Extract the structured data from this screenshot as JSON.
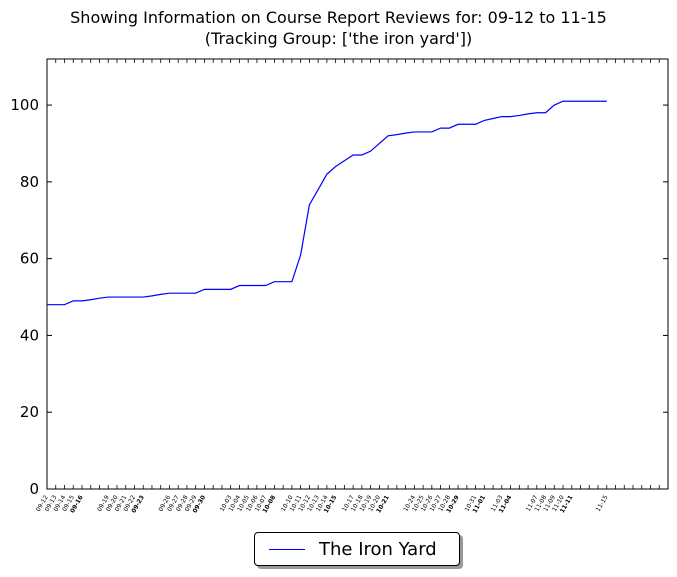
{
  "chart_data": {
    "type": "line",
    "title": "Showing Information on Course Report Reviews for: 09-12 to 11-15",
    "subtitle": "(Tracking Group: ['the iron yard'])",
    "xlabel": "",
    "ylabel": "",
    "ylim": [
      0,
      112
    ],
    "yticks": [
      0,
      20,
      40,
      60,
      80,
      100
    ],
    "x_start": "09-12",
    "x_end": "11-22",
    "x": [
      "09-12",
      "09-13",
      "09-14",
      "09-15",
      "09-16",
      "09-17",
      "09-18",
      "09-19",
      "09-20",
      "09-21",
      "09-22",
      "09-23",
      "09-24",
      "09-25",
      "09-26",
      "09-27",
      "09-28",
      "09-29",
      "09-30",
      "10-01",
      "10-02",
      "10-03",
      "10-04",
      "10-05",
      "10-06",
      "10-07",
      "10-08",
      "10-09",
      "10-10",
      "10-11",
      "10-12",
      "10-13",
      "10-14",
      "10-15",
      "10-16",
      "10-17",
      "10-18",
      "10-19",
      "10-20",
      "10-21",
      "10-22",
      "10-23",
      "10-24",
      "10-25",
      "10-26",
      "10-27",
      "10-28",
      "10-29",
      "10-30",
      "10-31",
      "11-01",
      "11-02",
      "11-03",
      "11-04",
      "11-05",
      "11-06",
      "11-07",
      "11-08",
      "11-09",
      "11-10",
      "11-11",
      "11-12",
      "11-13",
      "11-14",
      "11-15"
    ],
    "series": [
      {
        "name": "The Iron Yard",
        "color": "#0000ff",
        "values": [
          48,
          48,
          48,
          49,
          49,
          49.3,
          49.7,
          50,
          50,
          50,
          50,
          50,
          50.3,
          50.7,
          51,
          51,
          51,
          51,
          52,
          52,
          52,
          52,
          53,
          53,
          53,
          53,
          54,
          54,
          54,
          61,
          74,
          78,
          82,
          84,
          85.5,
          87,
          87,
          88,
          90,
          92,
          92.3,
          92.7,
          93,
          93,
          93,
          94,
          94,
          95,
          95,
          95,
          96,
          96.5,
          97,
          97,
          97.3,
          97.7,
          98,
          98,
          100,
          101,
          101,
          101,
          101,
          101,
          101
        ]
      }
    ],
    "xtick_labels": [
      {
        "label": "09-12",
        "bold": false
      },
      {
        "label": "09-13",
        "bold": false
      },
      {
        "label": "09-14",
        "bold": false
      },
      {
        "label": "09-15",
        "bold": false
      },
      {
        "label": "09-16",
        "bold": true
      },
      {
        "label": "09-19",
        "bold": false
      },
      {
        "label": "09-20",
        "bold": false
      },
      {
        "label": "09-21",
        "bold": false
      },
      {
        "label": "09-22",
        "bold": false
      },
      {
        "label": "09-23",
        "bold": true
      },
      {
        "label": "09-26",
        "bold": false
      },
      {
        "label": "09-27",
        "bold": false
      },
      {
        "label": "09-28",
        "bold": false
      },
      {
        "label": "09-29",
        "bold": false
      },
      {
        "label": "09-30",
        "bold": true
      },
      {
        "label": "10-03",
        "bold": false
      },
      {
        "label": "10-04",
        "bold": false
      },
      {
        "label": "10-05",
        "bold": false
      },
      {
        "label": "10-06",
        "bold": false
      },
      {
        "label": "10-07",
        "bold": false
      },
      {
        "label": "10-08",
        "bold": true
      },
      {
        "label": "10-10",
        "bold": false
      },
      {
        "label": "10-11",
        "bold": false
      },
      {
        "label": "10-12",
        "bold": false
      },
      {
        "label": "10-13",
        "bold": false
      },
      {
        "label": "10-14",
        "bold": false
      },
      {
        "label": "10-15",
        "bold": true
      },
      {
        "label": "10-17",
        "bold": false
      },
      {
        "label": "10-18",
        "bold": false
      },
      {
        "label": "10-19",
        "bold": false
      },
      {
        "label": "10-20",
        "bold": false
      },
      {
        "label": "10-21",
        "bold": true
      },
      {
        "label": "10-24",
        "bold": false
      },
      {
        "label": "10-25",
        "bold": false
      },
      {
        "label": "10-26",
        "bold": false
      },
      {
        "label": "10-27",
        "bold": false
      },
      {
        "label": "10-28",
        "bold": false
      },
      {
        "label": "10-29",
        "bold": true
      },
      {
        "label": "10-31",
        "bold": false
      },
      {
        "label": "11-01",
        "bold": true
      },
      {
        "label": "11-03",
        "bold": false
      },
      {
        "label": "11-04",
        "bold": true
      },
      {
        "label": "11-07",
        "bold": false
      },
      {
        "label": "11-08",
        "bold": false
      },
      {
        "label": "11-09",
        "bold": false
      },
      {
        "label": "11-10",
        "bold": false
      },
      {
        "label": "11-11",
        "bold": true
      },
      {
        "label": "11-15",
        "bold": false
      }
    ],
    "grid": false,
    "legend": {
      "placement": "bottom-center",
      "entries": [
        "The Iron Yard"
      ]
    }
  }
}
